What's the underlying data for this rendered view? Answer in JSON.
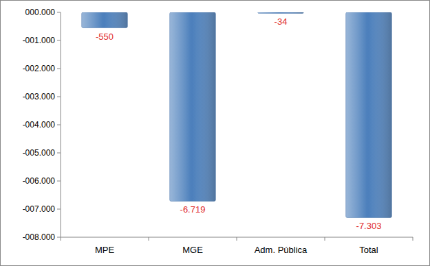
{
  "chart_data": {
    "type": "bar",
    "categories": [
      "MPE",
      "MGE",
      "Adm. Pública",
      "Total"
    ],
    "values": [
      -550,
      -6719,
      -34,
      -7303
    ],
    "value_labels": [
      "-550",
      "-6.719",
      "-34",
      "-7.303"
    ],
    "color": "#4a7ebb",
    "ylim": [
      -8000,
      0
    ],
    "yticks": [
      {
        "value": 0,
        "label": "000.000"
      },
      {
        "value": -1000,
        "label": "-001.000"
      },
      {
        "value": -2000,
        "label": "-002.000"
      },
      {
        "value": -3000,
        "label": "-003.000"
      },
      {
        "value": -4000,
        "label": "-004.000"
      },
      {
        "value": -5000,
        "label": "-005.000"
      },
      {
        "value": -6000,
        "label": "-006.000"
      },
      {
        "value": -7000,
        "label": "-007.000"
      },
      {
        "value": -8000,
        "label": "-008.000"
      }
    ],
    "grid": false,
    "data_labels": true
  }
}
